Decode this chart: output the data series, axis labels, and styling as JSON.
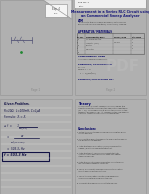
{
  "bg_color": "#b0b0b0",
  "page_bg": "#ffffff",
  "page_border": "#999999",
  "title": "Measurement in a Series RLC Circuit using\nan Commercial Sweep Analyser",
  "title_color": "#1a1a7a",
  "header_color": "#333333",
  "section_color": "#000066",
  "body_color": "#333333",
  "table_border": "#666666",
  "page1_label": "Page 1",
  "page2_label": "Page 2",
  "hw_color": "#111144",
  "pdf_color": "#bbbbbb"
}
